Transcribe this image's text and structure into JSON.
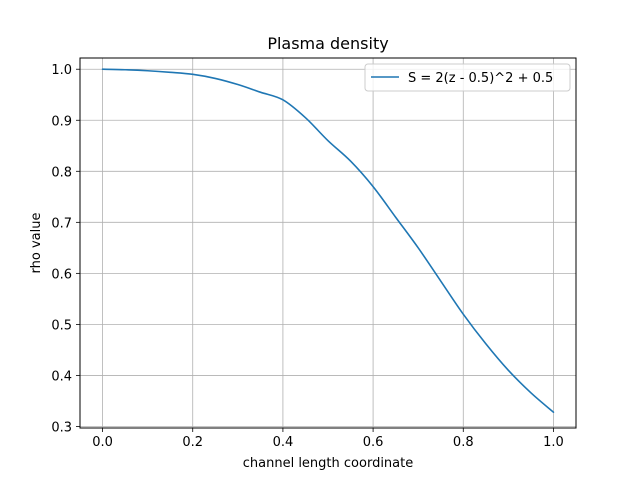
{
  "chart_data": {
    "type": "line",
    "title": "Plasma density",
    "xlabel": "channel length coordinate",
    "ylabel": "rho value",
    "xlim": [
      -0.05,
      1.05
    ],
    "ylim": [
      0.297,
      1.022
    ],
    "xticks": [
      0.0,
      0.2,
      0.4,
      0.6,
      0.8,
      1.0
    ],
    "xtick_labels": [
      "0.0",
      "0.2",
      "0.4",
      "0.6",
      "0.8",
      "1.0"
    ],
    "yticks": [
      0.3,
      0.4,
      0.5,
      0.6,
      0.7,
      0.8,
      0.9,
      1.0
    ],
    "ytick_labels": [
      "0.3",
      "0.4",
      "0.5",
      "0.6",
      "0.7",
      "0.8",
      "0.9",
      "1.0"
    ],
    "grid": true,
    "legend_position": "upper right",
    "series": [
      {
        "name": "S = 2(z - 0.5)^2 + 0.5",
        "color": "#1f77b4",
        "x": [
          0.0,
          0.05,
          0.1,
          0.15,
          0.2,
          0.25,
          0.3,
          0.35,
          0.4,
          0.45,
          0.5,
          0.55,
          0.6,
          0.65,
          0.7,
          0.75,
          0.8,
          0.85,
          0.9,
          0.95,
          1.0
        ],
        "y": [
          1.0,
          0.999,
          0.997,
          0.994,
          0.99,
          0.982,
          0.97,
          0.955,
          0.94,
          0.905,
          0.86,
          0.82,
          0.77,
          0.71,
          0.65,
          0.585,
          0.52,
          0.462,
          0.41,
          0.366,
          0.328
        ]
      }
    ]
  }
}
